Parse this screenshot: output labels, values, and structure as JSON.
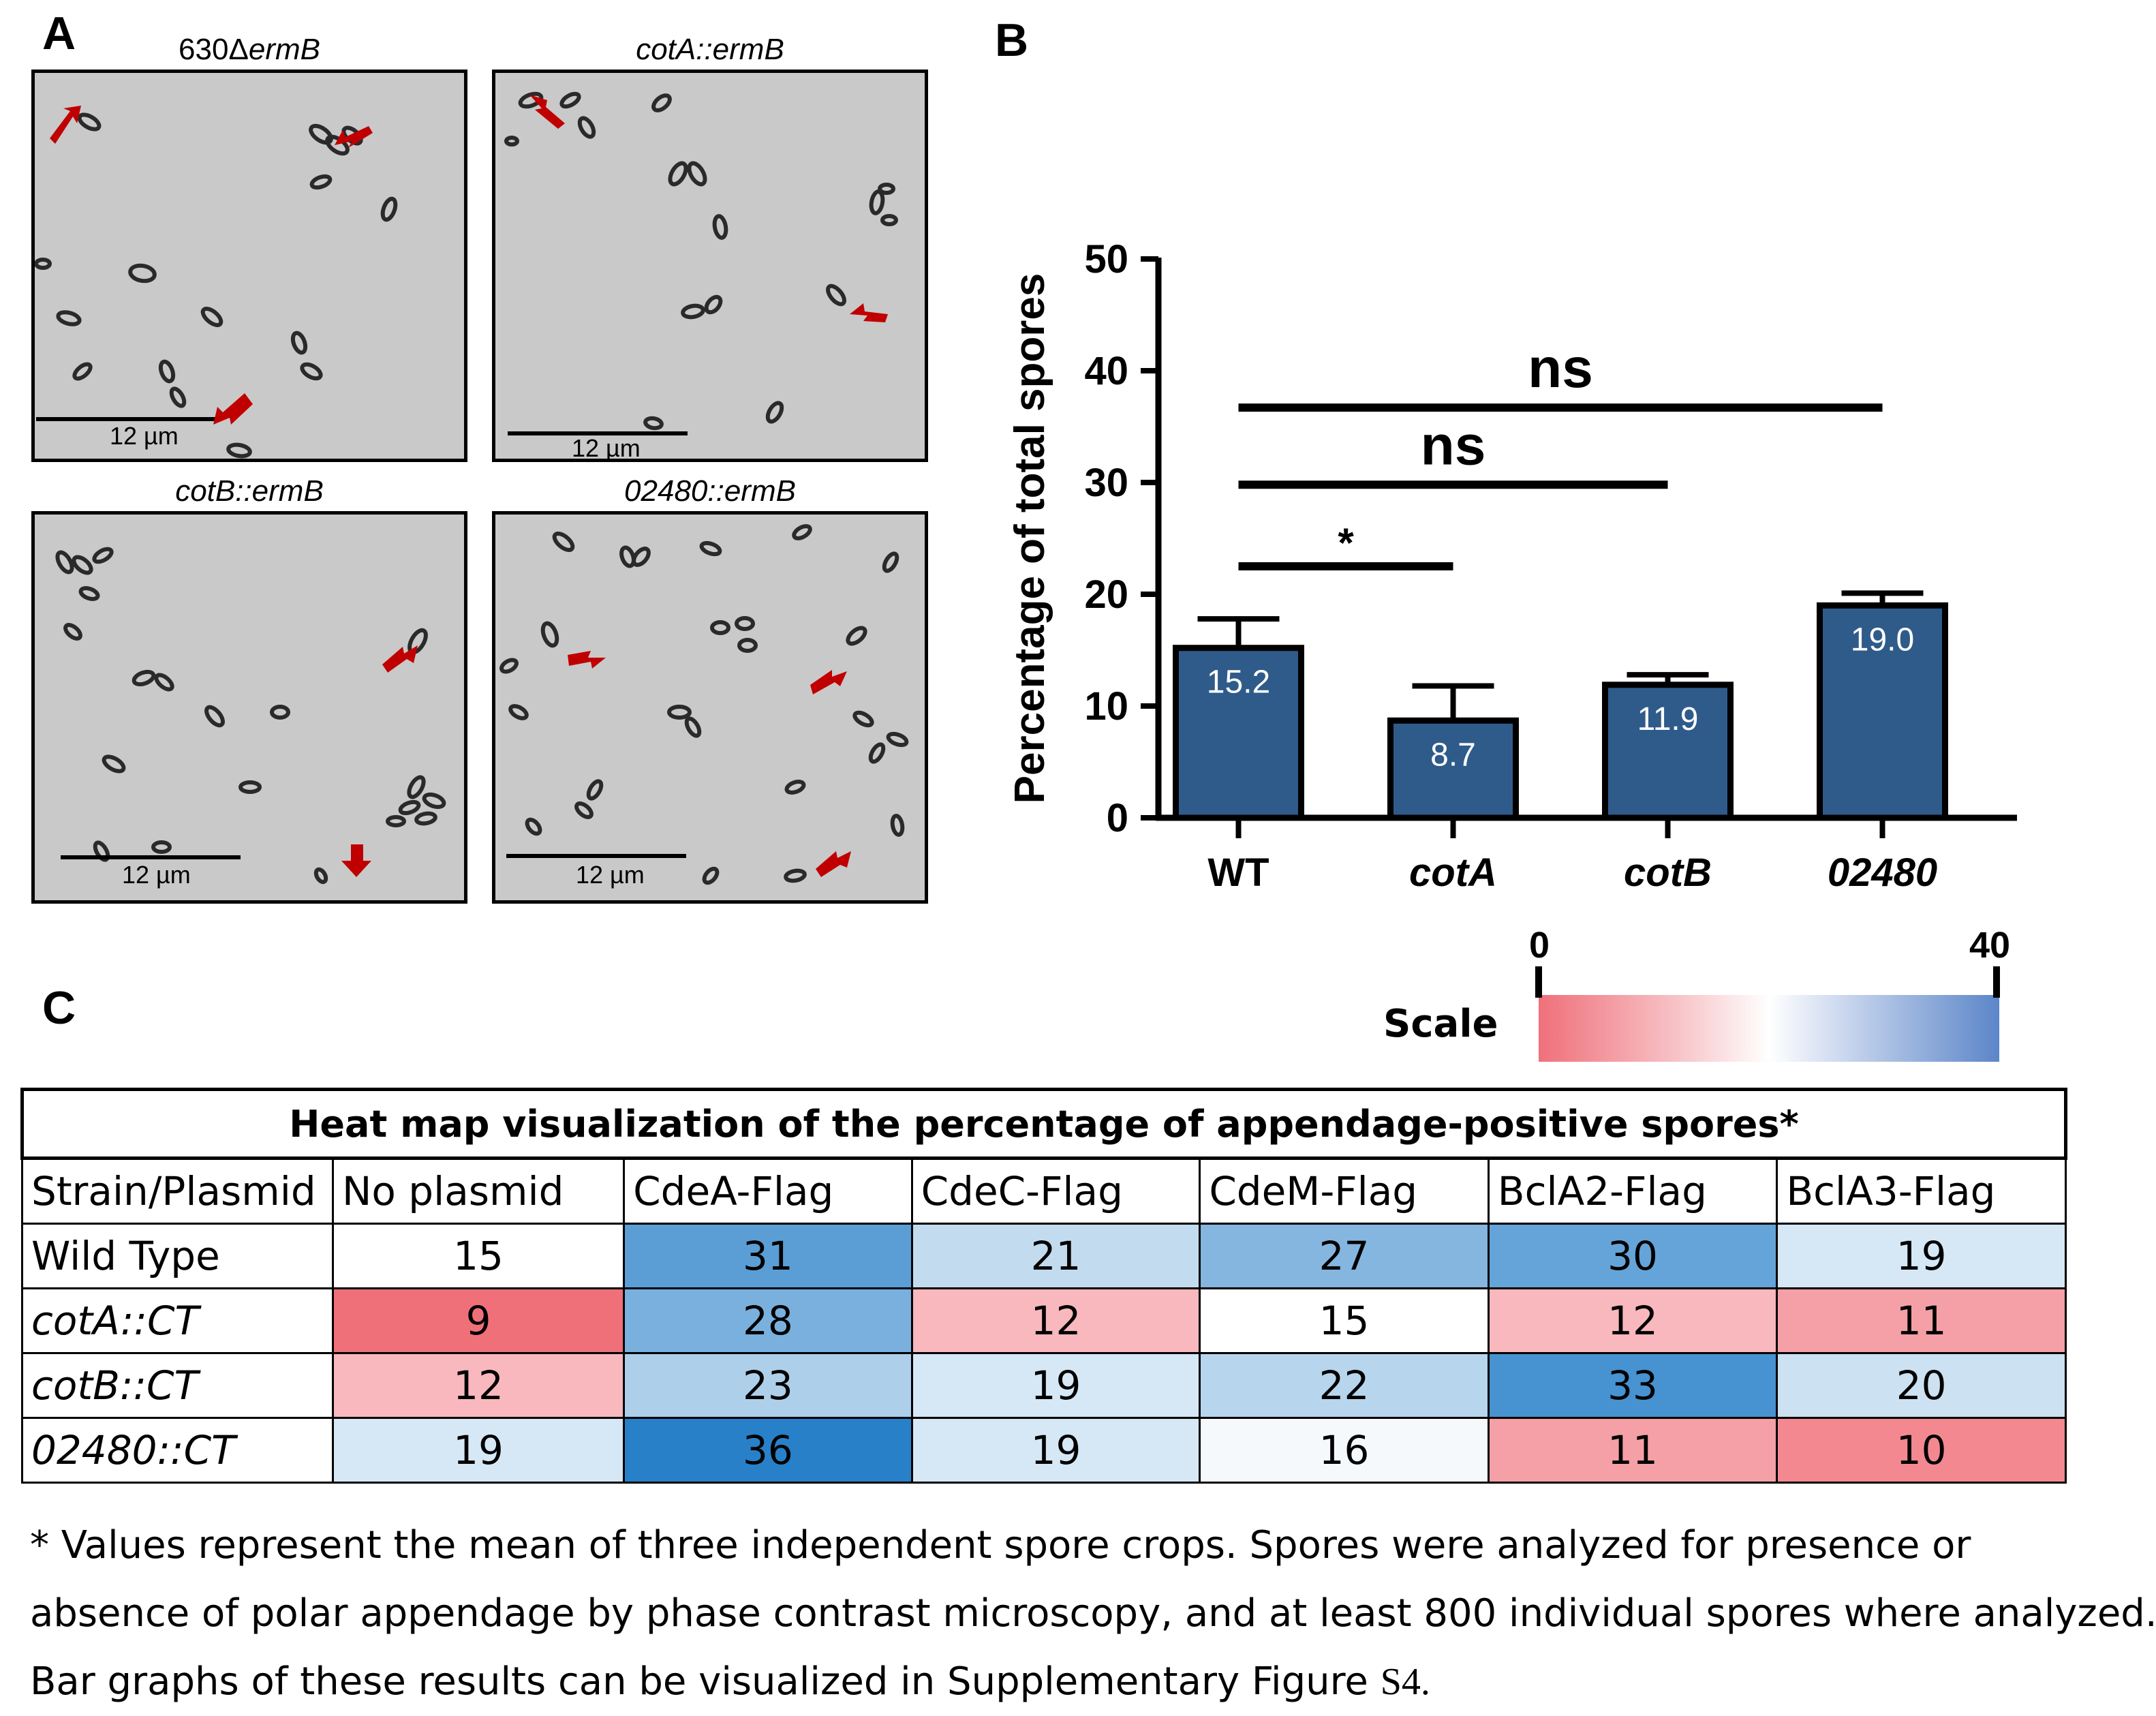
{
  "panel_a": {
    "letter": "A",
    "images": [
      {
        "title_plain": "630Δ",
        "title_ital": "ermB",
        "scale_bar": "12 µm"
      },
      {
        "title_plain": "",
        "title_ital": "cotA::ermB",
        "scale_bar": "12 µm"
      },
      {
        "title_plain": "",
        "title_ital": "cotB::ermB",
        "scale_bar": "12 µm"
      },
      {
        "title_plain": "",
        "title_ital": "02480::ermB",
        "scale_bar": "12 µm"
      }
    ],
    "arrow_color": "#c00000"
  },
  "panel_b": {
    "letter": "B"
  },
  "panel_c": {
    "letter": "C",
    "scale": {
      "label": "Scale",
      "min": "0",
      "max": "40",
      "low_color": "#f0707a",
      "mid_color": "#ffffff",
      "high_color": "#5b86c8"
    },
    "table_title": "Heat map visualization of the percentage of appendage-positive spores*",
    "header": [
      "Strain/Plasmid",
      "No plasmid",
      "CdeA-Flag",
      "CdeC-Flag",
      "CdeM-Flag",
      "BclA2-Flag",
      "BclA3-Flag"
    ],
    "rows": [
      {
        "strain": "Wild Type",
        "italic": false,
        "values": [
          15,
          31,
          21,
          27,
          30,
          19
        ]
      },
      {
        "strain": "cotA::CT",
        "italic": true,
        "values": [
          9,
          28,
          12,
          15,
          12,
          11
        ]
      },
      {
        "strain": "cotB::CT",
        "italic": true,
        "values": [
          12,
          23,
          19,
          22,
          33,
          20
        ]
      },
      {
        "strain": "02480::CT",
        "italic": true,
        "values": [
          19,
          36,
          19,
          16,
          11,
          10
        ]
      }
    ],
    "footnote": [
      "* Values represent the mean of three independent spore crops. Spores were analyzed for presence or",
      "absence of polar appendage by phase contrast microscopy, and at least 800 individual spores where analyzed.",
      "Bar graphs of these results can be visualized in Supplementary Figure "
    ],
    "footnote_ref": "S4."
  },
  "chart_data": {
    "type": "bar",
    "title": "",
    "xlabel": "",
    "ylabel": "Percentage of total spores",
    "categories": [
      "WT",
      "cotA",
      "cotB",
      "02480"
    ],
    "category_italic": [
      false,
      true,
      true,
      true
    ],
    "values": [
      15.2,
      8.7,
      11.9,
      19.0
    ],
    "value_labels": [
      "15.2",
      "8.7",
      "11.9",
      "19.0"
    ],
    "error": [
      2.6,
      3.1,
      0.9,
      1.1
    ],
    "ylim": [
      0,
      50
    ],
    "yticks": [
      0,
      10,
      20,
      30,
      40,
      50
    ],
    "bar_color": "#2f5b8a",
    "significance": [
      {
        "from": "WT",
        "to": "cotA",
        "label": "*",
        "y": 22.5
      },
      {
        "from": "WT",
        "to": "cotB",
        "label": "ns",
        "y": 29.8
      },
      {
        "from": "WT",
        "to": "02480",
        "label": "ns",
        "y": 36.7
      }
    ]
  }
}
